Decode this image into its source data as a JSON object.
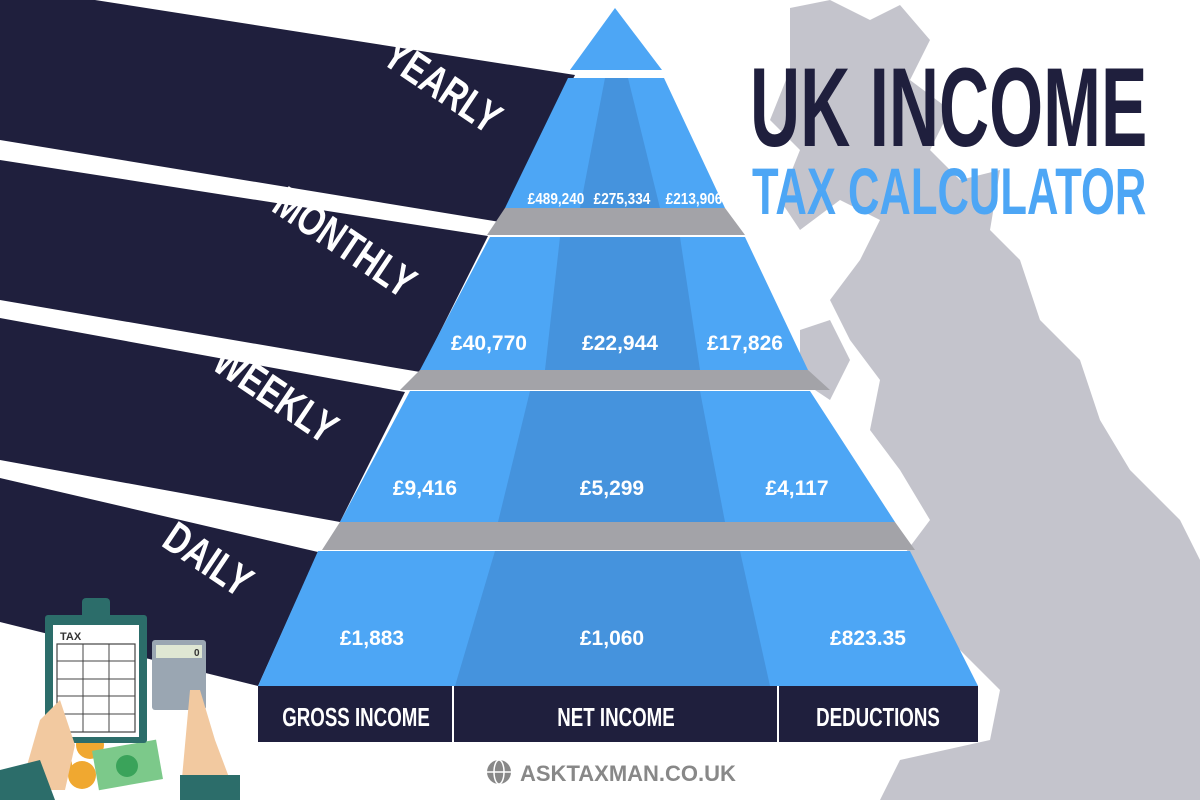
{
  "title": {
    "line1": "UK INCOME",
    "line2": "TAX CALCULATOR"
  },
  "colors": {
    "navy": "#1f1f3d",
    "blue": "#4da6f5",
    "blue_dark": "#4593dd",
    "gray": "#a3a3a8",
    "map": "#c4c4cc"
  },
  "periods": [
    "YEARLY",
    "MONTHLY",
    "WEEKLY",
    "DAILY"
  ],
  "columns": [
    "GROSS INCOME",
    "NET INCOME",
    "DEDUCTIONS"
  ],
  "rows": [
    {
      "period": "Yearly",
      "gross": "£489,240",
      "net": "£275,334",
      "deductions": "£213,906"
    },
    {
      "period": "Monthly",
      "gross": "£40,770",
      "net": "£22,944",
      "deductions": "£17,826"
    },
    {
      "period": "Weekly",
      "gross": "£9,416",
      "net": "£5,299",
      "deductions": "£4,117"
    },
    {
      "period": "Daily",
      "gross": "£1,883",
      "net": "£1,060",
      "deductions": "£823.35"
    }
  ],
  "illustration": {
    "clipboard_label": "TAX",
    "calculator_display": "0"
  },
  "footer": {
    "site": "ASKTAXMAN.CO.UK",
    "icon": "globe-icon"
  }
}
